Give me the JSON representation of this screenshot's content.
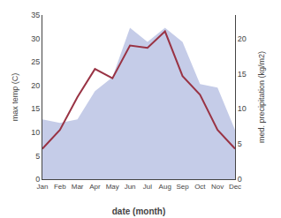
{
  "chart_data": {
    "type": "line",
    "xlabel": "date (month)",
    "ylabel": "max temp (C)",
    "y2label": "med. precipitation (kg/m2)",
    "categories": [
      "Jan",
      "Feb",
      "Mar",
      "Apr",
      "May",
      "Jun",
      "Jul",
      "Aug",
      "Sep",
      "Oct",
      "Nov",
      "Dec"
    ],
    "series": [
      {
        "type": "area",
        "axis": "y2",
        "color": "#c5cce8",
        "values": [
          8.5,
          8.0,
          8.5,
          12.5,
          14.5,
          21.5,
          19.5,
          21.5,
          19.5,
          13.5,
          13.0,
          7.0
        ]
      },
      {
        "type": "line",
        "color": "#993344",
        "values": [
          6.5,
          10.5,
          17.5,
          23.5,
          21.5,
          28.5,
          28.0,
          31.5,
          22.0,
          18.0,
          10.5,
          6.5
        ]
      }
    ],
    "ylim": [
      0,
      35
    ],
    "yticks": [
      0,
      5,
      10,
      15,
      20,
      25,
      30,
      35
    ],
    "y2lim": [
      0,
      23.33
    ],
    "y2ticks": [
      0,
      5,
      10,
      15,
      20
    ],
    "grid": false
  }
}
